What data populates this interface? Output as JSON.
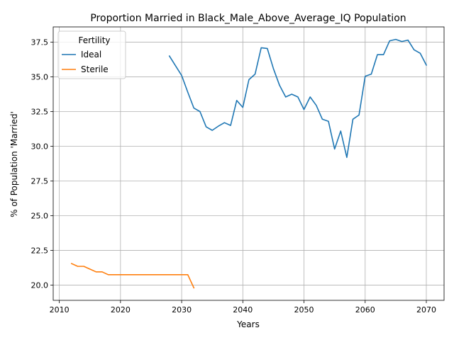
{
  "chart_data": {
    "type": "line",
    "title": "Proportion Married in Black_Male_Above_Average_IQ Population",
    "xlabel": "Years",
    "ylabel": "% of Population 'Married'",
    "xlim": [
      2009.0,
      2072.9
    ],
    "ylim": [
      18.9,
      38.6
    ],
    "xticks": [
      2010,
      2020,
      2030,
      2040,
      2050,
      2060,
      2070
    ],
    "yticks": [
      20.0,
      22.5,
      25.0,
      27.5,
      30.0,
      32.5,
      35.0,
      37.5
    ],
    "ytick_labels": [
      "20.0",
      "22.5",
      "25.0",
      "27.5",
      "30.0",
      "32.5",
      "35.0",
      "37.5"
    ],
    "grid": true,
    "legend": {
      "title": "Fertility",
      "placement": "top-left"
    },
    "series": [
      {
        "name": "Ideal",
        "color": "#1f77b4",
        "x": [
          2028,
          2029,
          2030,
          2031,
          2032,
          2033,
          2034,
          2035,
          2036,
          2037,
          2038,
          2039,
          2040,
          2041,
          2042,
          2043,
          2044,
          2045,
          2046,
          2047,
          2048,
          2049,
          2050,
          2051,
          2052,
          2053,
          2054,
          2055,
          2056,
          2057,
          2058,
          2059,
          2060,
          2061,
          2062,
          2063,
          2064,
          2065,
          2066,
          2067,
          2068,
          2069,
          2070
        ],
        "y": [
          36.5,
          35.8,
          35.1,
          33.9,
          32.75,
          32.5,
          31.4,
          31.15,
          31.45,
          31.7,
          31.5,
          33.3,
          32.8,
          34.8,
          35.2,
          37.1,
          37.05,
          35.6,
          34.4,
          33.55,
          33.75,
          33.55,
          32.65,
          33.55,
          32.95,
          31.95,
          31.8,
          29.8,
          31.1,
          29.2,
          31.95,
          32.25,
          35.05,
          35.2,
          36.6,
          36.6,
          37.6,
          37.7,
          37.55,
          37.65,
          36.95,
          36.7,
          35.85
        ]
      },
      {
        "name": "Sterile",
        "color": "#ff7f0e",
        "x": [
          2012,
          2013,
          2014,
          2015,
          2016,
          2017,
          2018,
          2019,
          2020,
          2021,
          2022,
          2023,
          2024,
          2025,
          2026,
          2027,
          2028,
          2029,
          2030,
          2031,
          2032
        ],
        "y": [
          21.55,
          21.35,
          21.35,
          21.15,
          20.95,
          20.95,
          20.75,
          20.75,
          20.75,
          20.75,
          20.75,
          20.75,
          20.75,
          20.75,
          20.75,
          20.75,
          20.75,
          20.75,
          20.75,
          20.75,
          19.8
        ]
      }
    ]
  }
}
